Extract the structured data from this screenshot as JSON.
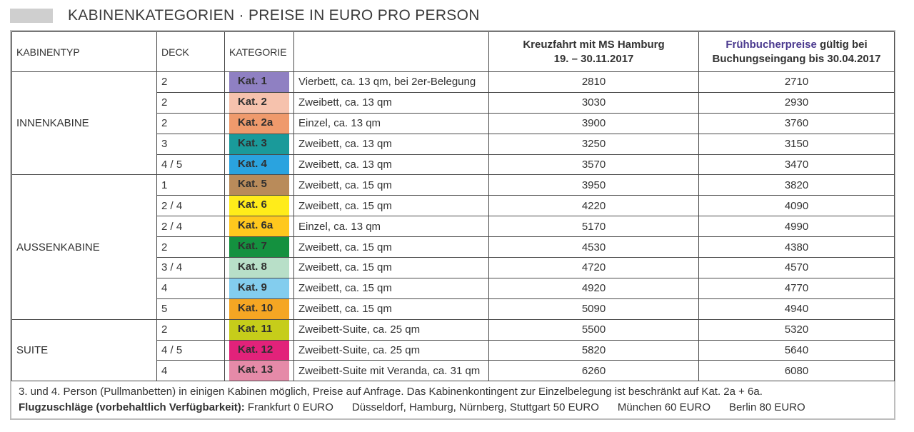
{
  "title": "KABINENKATEGORIEN · PREISE IN EURO PRO PERSON",
  "headers": {
    "kabinentyp": "KABINENTYP",
    "deck": "DECK",
    "kategorie": "KATEGORIE",
    "price1_line1": "Kreuzfahrt mit MS Hamburg",
    "price1_line2": "19. – 30.11.2017",
    "price2_accent": "Frühbucherpreise",
    "price2_rest": " gültig bei",
    "price2_line2": "Buchungseingang bis 30.04.2017"
  },
  "groups": [
    {
      "type": "INNENKABINE",
      "rows": [
        {
          "deck": "2",
          "kat": "Kat. 1",
          "color": "#8f80c2",
          "desc": "Vierbett, ca. 13 qm, bei 2er-Belegung",
          "price": "2810",
          "early": "2710"
        },
        {
          "deck": "2",
          "kat": "Kat. 2",
          "color": "#f6c2ad",
          "desc": "Zweibett, ca. 13 qm",
          "price": "3030",
          "early": "2930"
        },
        {
          "deck": "2",
          "kat": "Kat. 2a",
          "color": "#ef9a6c",
          "desc": "Einzel, ca. 13 qm",
          "price": "3900",
          "early": "3760"
        },
        {
          "deck": "3",
          "kat": "Kat. 3",
          "color": "#1a9a9a",
          "desc": "Zweibett, ca. 13 qm",
          "price": "3250",
          "early": "3150"
        },
        {
          "deck": "4 / 5",
          "kat": "Kat. 4",
          "color": "#2aa3df",
          "desc": "Zweibett, ca. 13 qm",
          "price": "3570",
          "early": "3470"
        }
      ]
    },
    {
      "type": "AUSSENKABINE",
      "rows": [
        {
          "deck": "1",
          "kat": "Kat. 5",
          "color": "#b98b5a",
          "desc": "Zweibett, ca. 15 qm",
          "price": "3950",
          "early": "3820"
        },
        {
          "deck": "2 / 4",
          "kat": "Kat. 6",
          "color": "#ffec1a",
          "desc": "Zweibett, ca. 15 qm",
          "price": "4220",
          "early": "4090"
        },
        {
          "deck": "2 / 4",
          "kat": "Kat. 6a",
          "color": "#ffc81e",
          "desc": "Einzel, ca. 13 qm",
          "price": "5170",
          "early": "4990"
        },
        {
          "deck": "2",
          "kat": "Kat. 7",
          "color": "#14913f",
          "desc": "Zweibett, ca. 15 qm",
          "price": "4530",
          "early": "4380"
        },
        {
          "deck": "3 / 4",
          "kat": "Kat. 8",
          "color": "#b8dfc8",
          "desc": "Zweibett, ca. 15 qm",
          "price": "4720",
          "early": "4570"
        },
        {
          "deck": "4",
          "kat": "Kat. 9",
          "color": "#83cdee",
          "desc": "Zweibett, ca. 15 qm",
          "price": "4920",
          "early": "4770"
        },
        {
          "deck": "5",
          "kat": "Kat. 10",
          "color": "#f5a623",
          "desc": "Zweibett, ca. 15 qm",
          "price": "5090",
          "early": "4940"
        }
      ]
    },
    {
      "type": "SUITE",
      "rows": [
        {
          "deck": "2",
          "kat": "Kat. 11",
          "color": "#c6cd1a",
          "desc": "Zweibett-Suite, ca. 25 qm",
          "price": "5500",
          "early": "5320"
        },
        {
          "deck": "4 / 5",
          "kat": "Kat. 12",
          "color": "#e2227a",
          "desc": "Zweibett-Suite, ca. 25 qm",
          "price": "5820",
          "early": "5640"
        },
        {
          "deck": "4",
          "kat": "Kat. 13",
          "color": "#e58aa8",
          "desc": "Zweibett-Suite mit Veranda, ca. 31 qm",
          "price": "6260",
          "early": "6080"
        }
      ]
    }
  ],
  "footer": {
    "note": "3. und 4. Person (Pullmanbetten) in einigen Kabinen möglich, Preise auf Anfrage. Das Kabinenkontingent zur Einzelbelegung ist beschränkt auf Kat. 2a + 6a.",
    "flights_label": "Flugzuschläge (vorbehaltlich Verfügbarkeit):",
    "flights": [
      "Frankfurt 0 EURO",
      "Düsseldorf, Hamburg, Nürnberg, Stuttgart 50 EURO",
      "München 60 EURO",
      "Berlin 80 EURO"
    ]
  }
}
